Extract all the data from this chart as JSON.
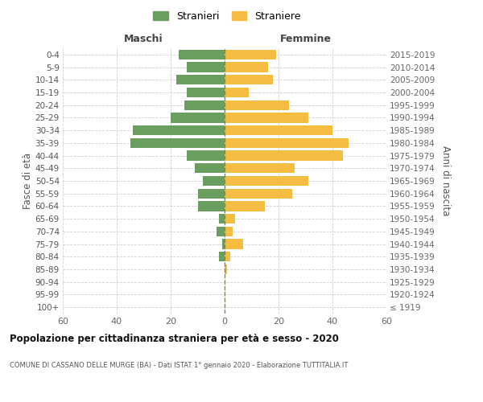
{
  "age_groups": [
    "100+",
    "95-99",
    "90-94",
    "85-89",
    "80-84",
    "75-79",
    "70-74",
    "65-69",
    "60-64",
    "55-59",
    "50-54",
    "45-49",
    "40-44",
    "35-39",
    "30-34",
    "25-29",
    "20-24",
    "15-19",
    "10-14",
    "5-9",
    "0-4"
  ],
  "birth_years": [
    "≤ 1919",
    "1920-1924",
    "1925-1929",
    "1930-1934",
    "1935-1939",
    "1940-1944",
    "1945-1949",
    "1950-1954",
    "1955-1959",
    "1960-1964",
    "1965-1969",
    "1970-1974",
    "1975-1979",
    "1980-1984",
    "1985-1989",
    "1990-1994",
    "1995-1999",
    "2000-2004",
    "2005-2009",
    "2010-2014",
    "2015-2019"
  ],
  "maschi": [
    0,
    0,
    0,
    0,
    2,
    1,
    3,
    2,
    10,
    10,
    8,
    11,
    14,
    35,
    34,
    20,
    15,
    14,
    18,
    14,
    17
  ],
  "femmine": [
    0,
    0,
    0,
    1,
    2,
    7,
    3,
    4,
    15,
    25,
    31,
    26,
    44,
    46,
    40,
    31,
    24,
    9,
    18,
    16,
    19
  ],
  "male_color": "#6a9e5e",
  "female_color": "#f5bc42",
  "grid_color": "#d0d0d0",
  "center_line_color": "#888844",
  "title": "Popolazione per cittadinanza straniera per età e sesso - 2020",
  "subtitle": "COMUNE DI CASSANO DELLE MURGE (BA) - Dati ISTAT 1° gennaio 2020 - Elaborazione TUTTITALIA.IT",
  "ylabel_left": "Fasce di età",
  "ylabel_right": "Anni di nascita",
  "xlabel_left": "Maschi",
  "xlabel_right": "Femmine",
  "legend_maschi": "Stranieri",
  "legend_femmine": "Straniere",
  "xlim": 60
}
